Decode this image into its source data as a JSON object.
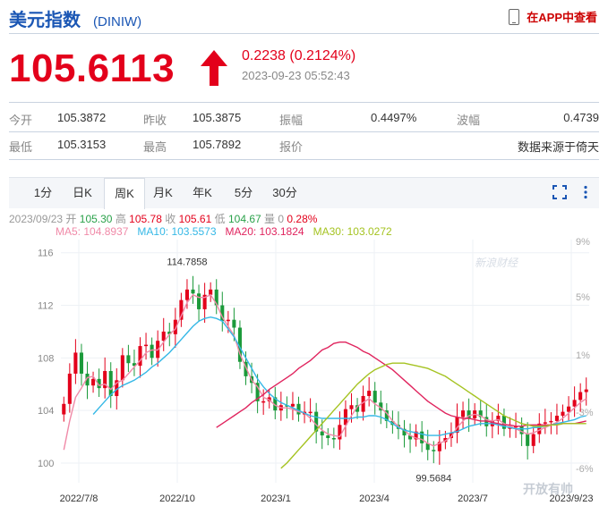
{
  "header": {
    "title": "美元指数",
    "code": "(DINIW)",
    "app_link": "在APP中查看",
    "phone_icon": "phone-icon"
  },
  "quote": {
    "price": "105.6113",
    "arrow_icon": "up-arrow-icon",
    "change": "0.2238 (0.2124%)",
    "time": "2023-09-23 05:52:43",
    "color_up": "#e3001b"
  },
  "stats": {
    "row1": [
      {
        "label": "今开",
        "value": "105.3872"
      },
      {
        "label": "昨收",
        "value": "105.3875"
      },
      {
        "label": "振幅",
        "value": "0.4497%"
      },
      {
        "label": "波幅",
        "value": "0.4739"
      }
    ],
    "row2": [
      {
        "label": "最低",
        "value": "105.3153"
      },
      {
        "label": "最高",
        "value": "105.7892"
      },
      {
        "label": "报价",
        "value": "数据来源于倚天"
      }
    ]
  },
  "tabs": [
    "1分",
    "日K",
    "周K",
    "月K",
    "年K",
    "5分",
    "30分"
  ],
  "active_tab": "周K",
  "toolbar": {
    "fullscreen_icon": "fullscreen-icon",
    "more_icon": "more-vertical-icon"
  },
  "info_line": {
    "date": "2023/09/23",
    "open_label": "开",
    "open": "105.30",
    "high_label": "高",
    "high": "105.78",
    "close_label": "收",
    "close": "105.61",
    "low_label": "低",
    "low": "104.67",
    "vol_label": "量",
    "vol": "0",
    "pct": "0.28%"
  },
  "ma_legend": [
    {
      "label": "MA5: 104.8937",
      "color": "#f08aa8"
    },
    {
      "label": "MA10: 103.5573",
      "color": "#35b8e6"
    },
    {
      "label": "MA20: 103.1824",
      "color": "#e0245e"
    },
    {
      "label": "MA30: 103.0272",
      "color": "#a5c321"
    }
  ],
  "watermarks": {
    "top": "新浪财经",
    "bottom": "开放有帅"
  },
  "chart_data": {
    "type": "candlestick",
    "colors": {
      "up": "#e3001b",
      "down": "#1b9a3a"
    },
    "y_ticks": [
      "116",
      "112",
      "108",
      "104",
      "100"
    ],
    "y_tick_values": [
      116,
      112,
      108,
      104,
      100
    ],
    "ylim": [
      98.5,
      117
    ],
    "pct_ticks": [
      "9%",
      "5%",
      "1%",
      "-3%",
      "-6%"
    ],
    "x_labels": [
      "2022/7/8",
      "2022/10",
      "2023/1",
      "2023/4",
      "2023/7",
      "2023/9/23"
    ],
    "annotations": [
      {
        "text": "114.7858",
        "value": 114.7858,
        "type": "high"
      },
      {
        "text": "99.5684",
        "value": 99.5684,
        "type": "low"
      }
    ],
    "closes": [
      104.5,
      106.8,
      108.4,
      106.8,
      105.9,
      106.4,
      105.7,
      107.0,
      105.1,
      106.3,
      108.2,
      107.6,
      107.4,
      108.9,
      109.0,
      108.0,
      109.3,
      110.0,
      109.8,
      110.9,
      112.4,
      113.2,
      112.9,
      111.7,
      112.8,
      113.2,
      112.0,
      110.8,
      110.9,
      110.3,
      107.7,
      106.6,
      106.1,
      104.7,
      104.7,
      105.0,
      104.0,
      104.4,
      104.3,
      104.5,
      103.7,
      103.9,
      103.9,
      102.4,
      102.1,
      101.9,
      101.8,
      102.9,
      104.1,
      104.4,
      103.9,
      105.1,
      105.5,
      104.6,
      104.0,
      103.2,
      102.9,
      102.6,
      102.1,
      101.8,
      102.4,
      101.5,
      101.0,
      100.9,
      101.6,
      101.9,
      102.3,
      103.5,
      104.0,
      103.4,
      104.0,
      103.5,
      102.8,
      103.2,
      103.6,
      102.6,
      102.7,
      102.8,
      102.2,
      101.3,
      102.2,
      103.0,
      103.1,
      103.2,
      103.6,
      103.9,
      104.3,
      104.8,
      105.4,
      105.6
    ],
    "ma": {
      "MA5": [
        101.0,
        103.2,
        105.0,
        105.7,
        106.5,
        106.6,
        105.9,
        106.0,
        105.6,
        106.1,
        106.3,
        106.8,
        107.3,
        107.8,
        108.4,
        108.6,
        108.6,
        109.2,
        109.8,
        110.2,
        111.2,
        112.2,
        112.8,
        112.6,
        112.6,
        112.8,
        112.1,
        111.1,
        110.4,
        109.7,
        108.3,
        107.3,
        106.3,
        105.8,
        105.0,
        104.8,
        104.4,
        104.2,
        104.2,
        104.1,
        103.9,
        103.8,
        103.4,
        102.9,
        102.5,
        102.2,
        102.1,
        102.0,
        102.8,
        103.6,
        104.3,
        104.6,
        104.9,
        104.5,
        104.2,
        103.8,
        103.2,
        102.8,
        102.5,
        102.1,
        101.9,
        101.8,
        101.5,
        101.3,
        101.5,
        101.7,
        102.0,
        102.7,
        103.2,
        103.6,
        103.7,
        103.6,
        103.3,
        103.2,
        103.3,
        103.0,
        102.8,
        102.6,
        102.4,
        102.2,
        102.3,
        102.5,
        102.7,
        102.9,
        103.1,
        103.4,
        103.8,
        104.2,
        104.6,
        104.9
      ],
      "MA10": [
        103.7,
        104.2,
        104.7,
        105.2,
        105.6,
        105.9,
        106.1,
        106.3,
        106.6,
        106.9,
        107.3,
        107.6,
        108.0,
        108.4,
        108.9,
        109.4,
        109.9,
        110.4,
        110.8,
        111.0,
        111.1,
        111.0,
        110.8,
        110.2,
        109.6,
        108.8,
        108.0,
        107.2,
        106.4,
        105.8,
        105.3,
        104.9,
        104.6,
        104.4,
        104.2,
        104.0,
        103.8,
        103.6,
        103.5,
        103.4,
        103.4,
        103.4,
        103.4,
        103.4,
        103.4,
        103.5,
        103.5,
        103.6,
        103.6,
        103.5,
        103.3,
        103.0,
        102.7,
        102.5,
        102.4,
        102.3,
        102.2,
        102.1,
        102.1,
        102.1,
        102.2,
        102.3,
        102.4,
        102.6,
        102.8,
        102.9,
        103.0,
        103.0,
        103.0,
        102.9,
        102.8,
        102.7,
        102.6,
        102.6,
        102.6,
        102.7,
        102.7,
        102.8,
        102.9,
        103.0,
        103.1,
        103.2,
        103.3,
        103.5,
        103.6
      ],
      "MA20": [
        102.7,
        103.0,
        103.3,
        103.6,
        103.9,
        104.2,
        104.6,
        104.9,
        105.2,
        105.6,
        105.9,
        106.2,
        106.5,
        106.8,
        107.2,
        107.5,
        107.8,
        108.2,
        108.6,
        108.8,
        109.1,
        109.2,
        109.2,
        109.0,
        108.8,
        108.5,
        108.3,
        108.0,
        107.7,
        107.4,
        107.1,
        106.7,
        106.3,
        105.9,
        105.5,
        105.1,
        104.7,
        104.4,
        104.1,
        103.8,
        103.6,
        103.5,
        103.4,
        103.4,
        103.3,
        103.2,
        103.2,
        103.1,
        103.0,
        102.9,
        102.9,
        102.8,
        102.8,
        102.9,
        102.9,
        102.9,
        102.9,
        102.9,
        102.9,
        103.0,
        103.0,
        103.0,
        103.1,
        103.2
      ],
      "MA30": [
        99.6,
        100.0,
        100.5,
        101.0,
        101.5,
        102.0,
        102.5,
        103.0,
        103.5,
        104.0,
        104.5,
        105.0,
        105.5,
        106.0,
        106.4,
        106.8,
        107.1,
        107.3,
        107.5,
        107.6,
        107.6,
        107.6,
        107.5,
        107.4,
        107.3,
        107.2,
        107.0,
        106.8,
        106.6,
        106.3,
        106.0,
        105.7,
        105.4,
        105.1,
        104.8,
        104.5,
        104.2,
        103.9,
        103.6,
        103.4,
        103.2,
        103.0,
        102.9,
        102.8,
        102.8,
        102.8,
        102.9,
        102.9,
        103.0,
        103.0,
        103.0,
        103.0,
        103.0
      ]
    }
  }
}
